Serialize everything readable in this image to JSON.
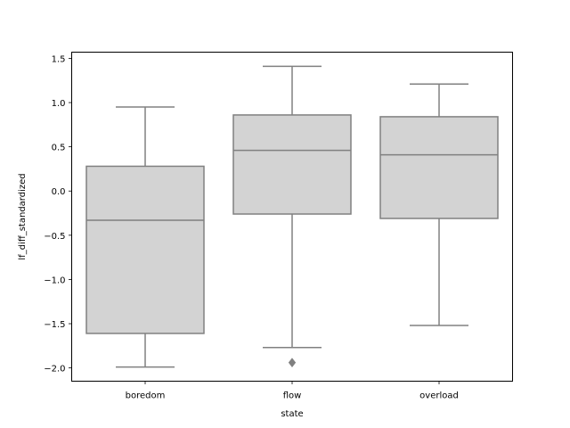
{
  "chart_data": {
    "type": "box",
    "title": "",
    "xlabel": "state",
    "ylabel": "lf_diff_standardized",
    "categories": [
      "boredom",
      "flow",
      "overload"
    ],
    "yticks": [
      -2.0,
      -1.5,
      -1.0,
      -0.5,
      0.0,
      0.5,
      1.0,
      1.5
    ],
    "ytick_labels": [
      "−2.0",
      "−1.5",
      "−1.0",
      "−0.5",
      "0.0",
      "0.5",
      "1.0",
      "1.5"
    ],
    "ylim": [
      -2.15,
      1.57
    ],
    "grid": false,
    "box_fill": "#d3d3d3",
    "line_color": "#808080",
    "boxes": [
      {
        "category": "boredom",
        "whisker_low": -1.99,
        "q1": -1.61,
        "median": -0.33,
        "q3": 0.28,
        "whisker_high": 0.95,
        "outliers": []
      },
      {
        "category": "flow",
        "whisker_low": -1.77,
        "q1": -0.26,
        "median": 0.46,
        "q3": 0.86,
        "whisker_high": 1.41,
        "outliers": [
          -1.94
        ]
      },
      {
        "category": "overload",
        "whisker_low": -1.52,
        "q1": -0.31,
        "median": 0.41,
        "q3": 0.84,
        "whisker_high": 1.21,
        "outliers": []
      }
    ]
  }
}
